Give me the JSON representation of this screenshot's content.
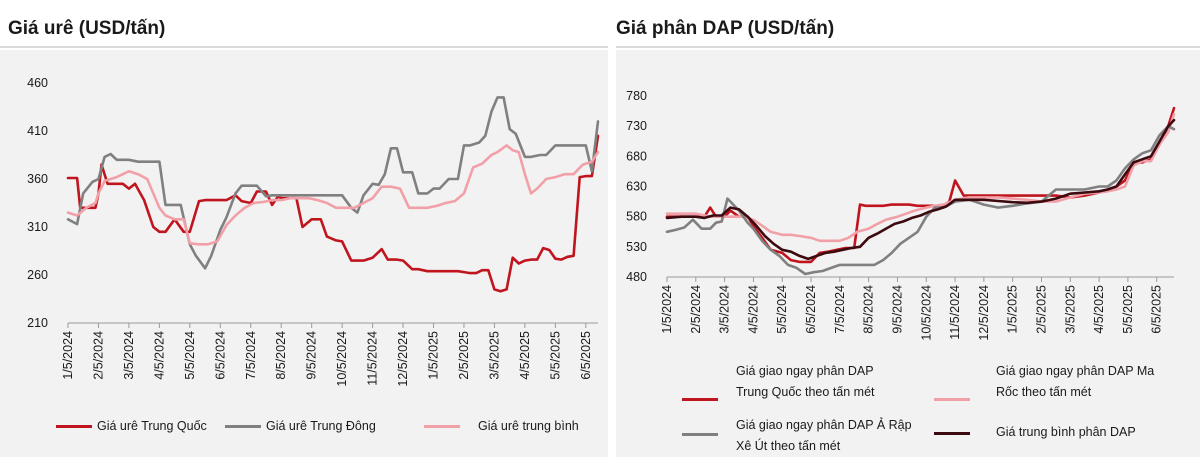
{
  "charts_meta": [
    {
      "title": "Giá urê (USD/tấn)"
    },
    {
      "title": "Giá phân DAP (USD/tấn)"
    }
  ],
  "chart_data": [
    {
      "type": "line",
      "title": "Giá urê (USD/tấn)",
      "xlabel": "",
      "ylabel": "",
      "ylim": [
        210,
        460
      ],
      "yticks": [
        210,
        260,
        310,
        360,
        410,
        460
      ],
      "x_tick_labels": [
        "1/5/2024",
        "2/5/2024",
        "3/5/2024",
        "4/5/2024",
        "5/5/2024",
        "6/5/2024",
        "7/5/2024",
        "8/5/2024",
        "9/5/2024",
        "10/5/2024",
        "11/5/2024",
        "12/5/2024",
        "1/5/2025",
        "2/5/2025",
        "3/5/2025",
        "4/5/2025",
        "5/5/2025",
        "6/5/2025"
      ],
      "x_tick_months": [
        0,
        1,
        2,
        3,
        4,
        5,
        6,
        7,
        8,
        9,
        10,
        11,
        12,
        13,
        14,
        15,
        16,
        17
      ],
      "xlim_months": [
        0,
        17.4
      ],
      "grid": false,
      "legend_position": "bottom",
      "series": [
        {
          "name": "Giá urê Trung Quốc",
          "color": "#c0141e",
          "x": [
            0,
            0.3,
            0.4,
            0.6,
            0.9,
            1,
            1.1,
            1.3,
            1.5,
            1.8,
            2,
            2.2,
            2.5,
            2.8,
            3,
            3.2,
            3.5,
            3.8,
            4,
            4.3,
            4.5,
            5,
            5.2,
            5.5,
            5.7,
            6,
            6.2,
            6.5,
            6.7,
            6.9,
            7,
            7.3,
            7.5,
            7.7,
            8,
            8.3,
            8.5,
            8.8,
            9,
            9.3,
            9.5,
            9.7,
            10,
            10.3,
            10.5,
            10.8,
            11,
            11.3,
            11.5,
            11.8,
            12,
            12.3,
            12.5,
            12.8,
            13,
            13.2,
            13.4,
            13.6,
            13.8,
            14,
            14.2,
            14.4,
            14.6,
            14.8,
            15,
            15.2,
            15.4,
            15.6,
            15.8,
            16,
            16.2,
            16.4,
            16.6,
            16.8,
            17,
            17.2,
            17.4
          ],
          "y": [
            361,
            361,
            330,
            330,
            330,
            345,
            375,
            355,
            355,
            355,
            350,
            355,
            338,
            310,
            305,
            305,
            318,
            305,
            305,
            337,
            338,
            338,
            338,
            343,
            337,
            335,
            347,
            347,
            333,
            342,
            340,
            340,
            340,
            310,
            318,
            318,
            300,
            296,
            295,
            275,
            275,
            275,
            278,
            287,
            276,
            276,
            275,
            266,
            266,
            264,
            264,
            264,
            264,
            264,
            263,
            262,
            262,
            265,
            265,
            245,
            243,
            245,
            278,
            272,
            275,
            276,
            276,
            288,
            286,
            277,
            276,
            279,
            280,
            362,
            363,
            363,
            405
          ]
        },
        {
          "name": "Giá urê Trung Đông",
          "color": "#808080",
          "x": [
            0,
            0.3,
            0.5,
            0.8,
            1,
            1.2,
            1.4,
            1.6,
            1.8,
            2,
            2.3,
            2.6,
            3,
            3.2,
            3.4,
            3.7,
            4,
            4.2,
            4.5,
            4.7,
            5,
            5.2,
            5.5,
            5.7,
            6,
            6.2,
            6.5,
            6.7,
            7,
            7.3,
            7.5,
            7.8,
            8,
            8.3,
            8.5,
            8.8,
            9,
            9.3,
            9.5,
            9.7,
            10,
            10.2,
            10.4,
            10.6,
            10.8,
            11,
            11.3,
            11.5,
            11.8,
            12,
            12.2,
            12.5,
            12.8,
            13,
            13.2,
            13.5,
            13.7,
            13.9,
            14.1,
            14.3,
            14.5,
            14.7,
            15,
            15.2,
            15.5,
            15.7,
            16,
            16.2,
            16.5,
            16.8,
            17,
            17.2,
            17.4
          ],
          "y": [
            318,
            313,
            345,
            357,
            360,
            383,
            386,
            380,
            380,
            380,
            378,
            378,
            378,
            333,
            333,
            333,
            292,
            280,
            267,
            280,
            307,
            320,
            345,
            353,
            353,
            353,
            342,
            343,
            343,
            343,
            343,
            343,
            343,
            343,
            343,
            343,
            343,
            330,
            325,
            343,
            355,
            354,
            365,
            392,
            392,
            367,
            367,
            345,
            345,
            350,
            350,
            360,
            360,
            395,
            395,
            398,
            405,
            430,
            445,
            445,
            412,
            407,
            383,
            383,
            385,
            385,
            395,
            395,
            395,
            395,
            395,
            368,
            420
          ]
        },
        {
          "name": "Giá urê trung bình",
          "color": "#f2a0a8",
          "x": [
            0,
            0.3,
            0.6,
            0.9,
            1,
            1.2,
            1.4,
            1.6,
            1.8,
            2,
            2.3,
            2.6,
            3,
            3.2,
            3.5,
            3.8,
            4,
            4.3,
            4.6,
            4.9,
            5.2,
            5.5,
            5.8,
            6.1,
            6.4,
            6.7,
            7,
            7.3,
            7.6,
            7.9,
            8.2,
            8.5,
            8.8,
            9.1,
            9.4,
            9.7,
            10,
            10.3,
            10.6,
            10.9,
            11.2,
            11.5,
            11.8,
            12.1,
            12.4,
            12.7,
            13,
            13.3,
            13.6,
            13.9,
            14.1,
            14.4,
            14.6,
            14.8,
            15,
            15.2,
            15.4,
            15.7,
            16,
            16.3,
            16.6,
            16.9,
            17.2,
            17.4
          ],
          "y": [
            325,
            322,
            330,
            335,
            345,
            358,
            360,
            362,
            365,
            368,
            365,
            360,
            330,
            322,
            318,
            318,
            293,
            292,
            292,
            295,
            312,
            322,
            330,
            335,
            336,
            338,
            338,
            340,
            340,
            340,
            338,
            335,
            330,
            330,
            330,
            335,
            340,
            352,
            352,
            350,
            330,
            330,
            330,
            332,
            335,
            337,
            345,
            372,
            376,
            385,
            388,
            395,
            390,
            388,
            365,
            345,
            350,
            360,
            362,
            365,
            365,
            375,
            378,
            388
          ]
        }
      ]
    },
    {
      "type": "line",
      "title": "Giá phân DAP (USD/tấn)",
      "xlabel": "",
      "ylabel": "",
      "ylim": [
        480,
        780
      ],
      "yticks": [
        480,
        530,
        580,
        630,
        680,
        730,
        780
      ],
      "x_tick_labels": [
        "1/5/2024",
        "2/5/2024",
        "3/5/2024",
        "4/5/2024",
        "5/5/2024",
        "6/5/2024",
        "7/5/2024",
        "8/5/2024",
        "9/5/2024",
        "10/5/2024",
        "11/5/2024",
        "12/5/2024",
        "1/5/2025",
        "2/5/2025",
        "3/5/2025",
        "4/5/2025",
        "5/5/2025",
        "6/5/2025"
      ],
      "x_tick_months": [
        0,
        1,
        2,
        3,
        4,
        5,
        6,
        7,
        8,
        9,
        10,
        11,
        12,
        13,
        14,
        15,
        16,
        17
      ],
      "xlim_months": [
        0,
        17.6
      ],
      "grid": false,
      "legend_position": "bottom",
      "series": [
        {
          "name": "Giá giao ngay phân DAP Trung Quốc theo tấn mét",
          "color": "#c0141e",
          "x": [
            0,
            0.5,
            1,
            1.3,
            1.5,
            1.7,
            2,
            2.2,
            2.5,
            2.8,
            3,
            3.3,
            3.6,
            4,
            4.3,
            4.6,
            5,
            5.3,
            5.6,
            5.9,
            6.2,
            6.5,
            6.7,
            6.9,
            7.2,
            7.5,
            7.8,
            8.1,
            8.4,
            8.7,
            9,
            9.3,
            9.6,
            9.8,
            10,
            10.3,
            10.6,
            11,
            11.5,
            12,
            12.5,
            13,
            13.5,
            14,
            14.5,
            15,
            15.3,
            15.6,
            15.9,
            16.2,
            16.5,
            16.8,
            17.1,
            17.4,
            17.6
          ],
          "y": [
            580,
            580,
            580,
            580,
            595,
            580,
            580,
            590,
            580,
            580,
            565,
            545,
            525,
            520,
            508,
            505,
            505,
            520,
            522,
            525,
            528,
            528,
            600,
            598,
            598,
            598,
            600,
            600,
            600,
            598,
            598,
            598,
            598,
            605,
            640,
            615,
            615,
            615,
            615,
            615,
            615,
            615,
            615,
            612,
            615,
            620,
            625,
            630,
            640,
            670,
            670,
            675,
            700,
            730,
            760
          ]
        },
        {
          "name": "Giá giao ngay phân DAP Ma Rốc theo tấn mét",
          "color": "#f2a0a8",
          "x": [
            0,
            0.5,
            1,
            1.5,
            2,
            2.3,
            2.6,
            3,
            3.3,
            3.6,
            4,
            4.3,
            4.6,
            5,
            5.3,
            5.6,
            6,
            6.3,
            6.6,
            7,
            7.3,
            7.6,
            8,
            8.3,
            8.6,
            9,
            9.3,
            9.6,
            10,
            10.5,
            11,
            11.5,
            12,
            12.5,
            13,
            13.5,
            14,
            14.5,
            15,
            15.3,
            15.6,
            15.9,
            16.2,
            16.5,
            16.8,
            17.1,
            17.4,
            17.6
          ],
          "y": [
            585,
            585,
            585,
            580,
            580,
            580,
            580,
            575,
            565,
            555,
            550,
            550,
            548,
            545,
            540,
            540,
            540,
            545,
            555,
            560,
            568,
            575,
            580,
            585,
            590,
            595,
            598,
            600,
            608,
            612,
            612,
            612,
            610,
            608,
            605,
            605,
            612,
            618,
            620,
            622,
            625,
            630,
            665,
            672,
            672,
            700,
            720,
            750
          ]
        },
        {
          "name": "Giá giao ngay phân DAP Ả Rập Xê Út theo tấn mét",
          "color": "#808080",
          "x": [
            0,
            0.3,
            0.6,
            0.9,
            1.2,
            1.5,
            1.7,
            1.9,
            2.1,
            2.3,
            2.5,
            2.8,
            3,
            3.3,
            3.6,
            3.9,
            4.2,
            4.5,
            4.8,
            5.1,
            5.4,
            5.7,
            6,
            6.3,
            6.6,
            6.9,
            7.2,
            7.5,
            7.8,
            8.1,
            8.4,
            8.7,
            9,
            9.3,
            9.6,
            10,
            10.5,
            11,
            11.5,
            12,
            12.5,
            13,
            13.5,
            14,
            14.5,
            15,
            15.3,
            15.6,
            15.9,
            16.2,
            16.5,
            16.8,
            17.1,
            17.4,
            17.6
          ],
          "y": [
            555,
            558,
            562,
            575,
            560,
            560,
            570,
            572,
            610,
            600,
            590,
            570,
            560,
            540,
            525,
            515,
            500,
            495,
            485,
            488,
            490,
            495,
            500,
            500,
            500,
            500,
            500,
            508,
            520,
            535,
            545,
            555,
            580,
            595,
            595,
            605,
            608,
            600,
            595,
            598,
            602,
            605,
            625,
            625,
            625,
            630,
            630,
            640,
            660,
            675,
            685,
            690,
            715,
            730,
            725
          ]
        },
        {
          "name": "Giá trung bình phân DAP",
          "color": "#3d0a10",
          "x": [
            0,
            0.5,
            1,
            1.3,
            1.6,
            1.9,
            2.2,
            2.5,
            2.8,
            3.1,
            3.4,
            3.7,
            4,
            4.3,
            4.6,
            4.9,
            5.2,
            5.5,
            5.8,
            6.1,
            6.4,
            6.7,
            7,
            7.3,
            7.6,
            7.9,
            8.2,
            8.5,
            8.8,
            9.1,
            9.4,
            9.7,
            10,
            10.5,
            11,
            11.5,
            12,
            12.5,
            13,
            13.5,
            14,
            14.5,
            15,
            15.3,
            15.6,
            15.9,
            16.2,
            16.5,
            16.8,
            17.1,
            17.4,
            17.6
          ],
          "y": [
            578,
            580,
            580,
            578,
            582,
            582,
            595,
            592,
            580,
            565,
            548,
            535,
            525,
            522,
            515,
            510,
            515,
            520,
            522,
            525,
            528,
            530,
            545,
            552,
            560,
            568,
            572,
            578,
            582,
            588,
            592,
            597,
            608,
            608,
            608,
            606,
            604,
            603,
            605,
            610,
            618,
            620,
            622,
            625,
            630,
            650,
            670,
            675,
            680,
            705,
            730,
            740
          ]
        }
      ]
    }
  ]
}
